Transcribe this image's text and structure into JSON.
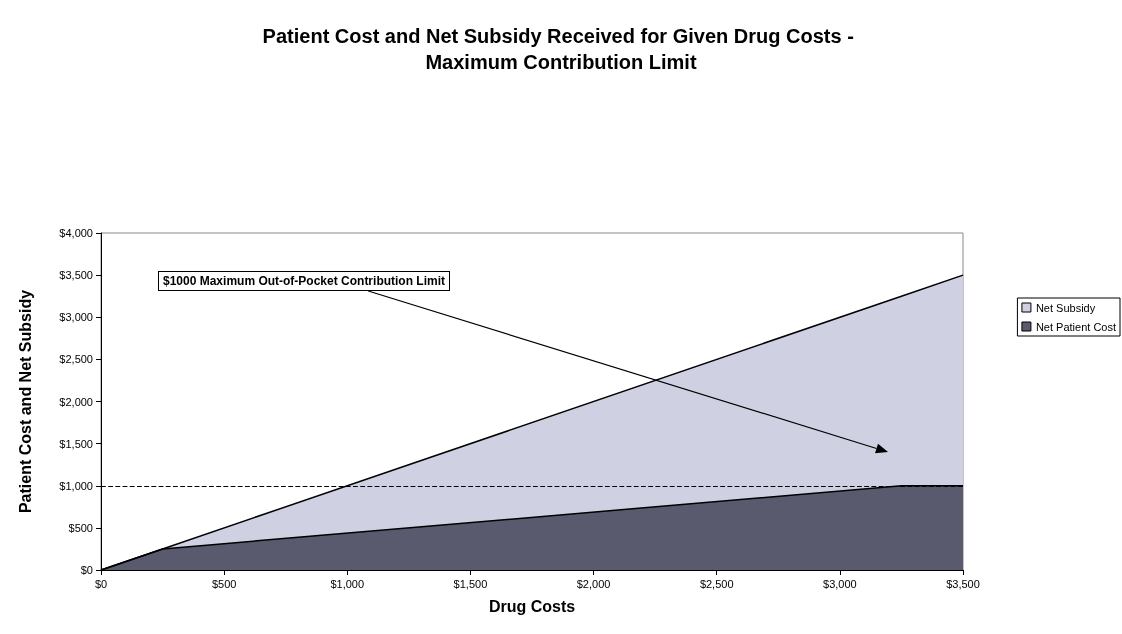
{
  "chart_data": {
    "type": "area",
    "title": "Patient Cost and Net Subsidy Received for Given Drug Costs - Maximum Contribution Limit",
    "xlabel": "Drug Costs",
    "ylabel": "Patient Cost and Net Subsidy",
    "stacked": true,
    "x": [
      0,
      250,
      3250,
      3500
    ],
    "series": [
      {
        "name": "Net Patient Cost",
        "color": "#5a5a6e",
        "values": [
          0,
          250,
          1000,
          1000
        ]
      },
      {
        "name": "Net Subsidy",
        "color": "#cfd1e3",
        "values": [
          0,
          0,
          2250,
          2500
        ]
      }
    ],
    "xlim": [
      0,
      3500
    ],
    "xticks": [
      {
        "value": 0,
        "label": "$0"
      },
      {
        "value": 500,
        "label": "$500"
      },
      {
        "value": 1000,
        "label": "$1,000"
      },
      {
        "value": 1500,
        "label": "$1,500"
      },
      {
        "value": 2000,
        "label": "$2,000"
      },
      {
        "value": 2500,
        "label": "$2,500"
      },
      {
        "value": 3000,
        "label": "$3,000"
      },
      {
        "value": 3500,
        "label": "$3,500"
      }
    ],
    "ylim": [
      0,
      4000
    ],
    "yticks": [
      {
        "value": 0,
        "label": "$0"
      },
      {
        "value": 500,
        "label": "$500"
      },
      {
        "value": 1000,
        "label": "$1,000"
      },
      {
        "value": 1500,
        "label": "$1,500"
      },
      {
        "value": 2000,
        "label": "$2,000"
      },
      {
        "value": 2500,
        "label": "$2,500"
      },
      {
        "value": 3000,
        "label": "$3,000"
      },
      {
        "value": 3500,
        "label": "$3,500"
      },
      {
        "value": 4000,
        "label": "$4,000"
      }
    ],
    "ref_lines": [
      {
        "axis": "y",
        "value": 1000,
        "color": "#000000",
        "line_style": "dashed"
      }
    ],
    "annotations": [
      "$1000 Maximum Out-of-Pocket Contribution Limit"
    ],
    "grid": false,
    "legend": "right",
    "marker": "none",
    "line_style": "solid"
  }
}
